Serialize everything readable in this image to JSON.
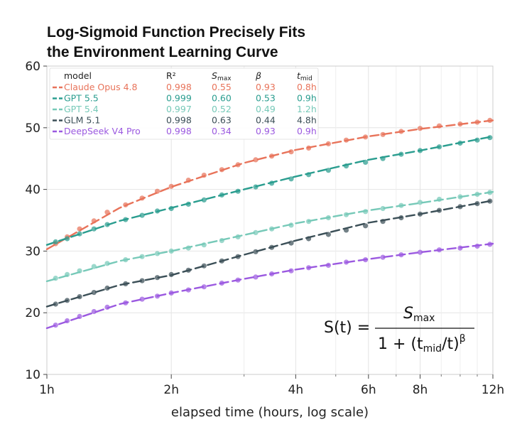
{
  "chart_data": {
    "type": "scatter",
    "title_lines": [
      "Log-Sigmoid Function Precisely Fits",
      "the Environment Learning Curve"
    ],
    "xlabel": "elapsed time (hours, log scale)",
    "ylabel": "",
    "x_scale": "log",
    "xlim_hours": [
      1,
      12
    ],
    "ylim": [
      10,
      60
    ],
    "x_ticks": [
      {
        "hours": 1,
        "label": "1h"
      },
      {
        "hours": 2,
        "label": "2h"
      },
      {
        "hours": 4,
        "label": "4h"
      },
      {
        "hours": 6,
        "label": "6h"
      },
      {
        "hours": 8,
        "label": "8h"
      },
      {
        "hours": 12,
        "label": "12h"
      }
    ],
    "y_ticks": [
      10,
      20,
      30,
      40,
      50,
      60
    ],
    "grid": true,
    "legend_position": "top-left",
    "legend_headers": [
      "model",
      "R²",
      "Smax",
      "β",
      "tmid"
    ],
    "series": [
      {
        "name": "Claude Opus 4.8",
        "r2": "0.998",
        "smax": "0.55",
        "beta": "0.93",
        "tmid": "0.8h",
        "color": "#e8735a",
        "points": [
          [
            1.05,
            31.2
          ],
          [
            1.12,
            32.3
          ],
          [
            1.2,
            33.6
          ],
          [
            1.3,
            34.9
          ],
          [
            1.4,
            36.3
          ],
          [
            1.55,
            37.5
          ],
          [
            1.7,
            38.6
          ],
          [
            1.85,
            39.7
          ],
          [
            2.0,
            40.5
          ],
          [
            2.2,
            41.5
          ],
          [
            2.4,
            42.3
          ],
          [
            2.65,
            43.2
          ],
          [
            2.9,
            44.0
          ],
          [
            3.2,
            44.8
          ],
          [
            3.5,
            45.4
          ],
          [
            3.9,
            46.1
          ],
          [
            4.3,
            46.7
          ],
          [
            4.8,
            47.4
          ],
          [
            5.3,
            48.0
          ],
          [
            5.9,
            48.5
          ],
          [
            6.5,
            48.9
          ],
          [
            7.2,
            49.4
          ],
          [
            8.0,
            49.9
          ],
          [
            8.9,
            50.3
          ],
          [
            10.0,
            50.6
          ],
          [
            11.0,
            50.9
          ],
          [
            11.8,
            51.2
          ]
        ]
      },
      {
        "name": "GPT 5.5",
        "r2": "0.999",
        "smax": "0.60",
        "beta": "0.53",
        "tmid": "0.9h",
        "color": "#2a9d8f",
        "points": [
          [
            1.05,
            31.5
          ],
          [
            1.12,
            32.0
          ],
          [
            1.2,
            32.8
          ],
          [
            1.3,
            33.6
          ],
          [
            1.4,
            34.3
          ],
          [
            1.55,
            35.1
          ],
          [
            1.7,
            35.8
          ],
          [
            1.85,
            36.5
          ],
          [
            2.0,
            36.9
          ],
          [
            2.2,
            37.6
          ],
          [
            2.4,
            38.3
          ],
          [
            2.65,
            39.1
          ],
          [
            2.9,
            39.7
          ],
          [
            3.2,
            40.4
          ],
          [
            3.5,
            41.0
          ],
          [
            3.9,
            41.7
          ],
          [
            4.3,
            42.4
          ],
          [
            4.8,
            43.1
          ],
          [
            5.3,
            43.8
          ],
          [
            5.9,
            44.4
          ],
          [
            6.5,
            45.0
          ],
          [
            7.2,
            45.7
          ],
          [
            8.0,
            46.3
          ],
          [
            8.9,
            46.9
          ],
          [
            10.0,
            47.5
          ],
          [
            11.0,
            48.0
          ],
          [
            11.8,
            48.4
          ]
        ]
      },
      {
        "name": "GPT 5.4",
        "r2": "0.997",
        "smax": "0.52",
        "beta": "0.49",
        "tmid": "1.2h",
        "color": "#76c9b8",
        "points": [
          [
            1.05,
            25.6
          ],
          [
            1.12,
            26.2
          ],
          [
            1.2,
            26.8
          ],
          [
            1.3,
            27.5
          ],
          [
            1.4,
            28.0
          ],
          [
            1.55,
            28.6
          ],
          [
            1.7,
            29.1
          ],
          [
            1.85,
            29.6
          ],
          [
            2.0,
            30.0
          ],
          [
            2.2,
            30.5
          ],
          [
            2.4,
            31.0
          ],
          [
            2.65,
            31.7
          ],
          [
            2.9,
            32.3
          ],
          [
            3.2,
            33.0
          ],
          [
            3.5,
            33.6
          ],
          [
            3.9,
            34.2
          ],
          [
            4.3,
            34.8
          ],
          [
            4.8,
            35.4
          ],
          [
            5.3,
            35.9
          ],
          [
            5.9,
            36.4
          ],
          [
            6.5,
            36.9
          ],
          [
            7.2,
            37.4
          ],
          [
            8.0,
            37.9
          ],
          [
            8.9,
            38.4
          ],
          [
            10.0,
            38.8
          ],
          [
            11.0,
            39.2
          ],
          [
            11.8,
            39.5
          ]
        ]
      },
      {
        "name": "GLM 5.1",
        "r2": "0.998",
        "smax": "0.63",
        "beta": "0.44",
        "tmid": "4.8h",
        "color": "#3b4f57",
        "points": [
          [
            1.05,
            21.4
          ],
          [
            1.12,
            22.0
          ],
          [
            1.2,
            22.6
          ],
          [
            1.3,
            23.3
          ],
          [
            1.4,
            24.0
          ],
          [
            1.55,
            24.7
          ],
          [
            1.7,
            25.2
          ],
          [
            1.85,
            25.7
          ],
          [
            2.0,
            26.2
          ],
          [
            2.2,
            26.9
          ],
          [
            2.4,
            27.6
          ],
          [
            2.65,
            28.4
          ],
          [
            2.9,
            29.1
          ],
          [
            3.2,
            29.9
          ],
          [
            3.5,
            30.6
          ],
          [
            3.9,
            31.3
          ],
          [
            4.3,
            32.0
          ],
          [
            4.8,
            32.7
          ],
          [
            5.3,
            33.4
          ],
          [
            5.9,
            34.1
          ],
          [
            6.5,
            34.8
          ],
          [
            7.2,
            35.4
          ],
          [
            8.0,
            36.0
          ],
          [
            8.9,
            36.6
          ],
          [
            10.0,
            37.2
          ],
          [
            11.0,
            37.7
          ],
          [
            11.8,
            38.1
          ]
        ]
      },
      {
        "name": "DeepSeek V4 Pro",
        "r2": "0.998",
        "smax": "0.34",
        "beta": "0.93",
        "tmid": "0.9h",
        "color": "#9b59e0",
        "points": [
          [
            1.05,
            18.0
          ],
          [
            1.12,
            18.7
          ],
          [
            1.2,
            19.4
          ],
          [
            1.3,
            20.2
          ],
          [
            1.4,
            20.9
          ],
          [
            1.55,
            21.6
          ],
          [
            1.7,
            22.2
          ],
          [
            1.85,
            22.7
          ],
          [
            2.0,
            23.2
          ],
          [
            2.2,
            23.7
          ],
          [
            2.4,
            24.2
          ],
          [
            2.65,
            24.8
          ],
          [
            2.9,
            25.3
          ],
          [
            3.2,
            25.8
          ],
          [
            3.5,
            26.3
          ],
          [
            3.9,
            26.8
          ],
          [
            4.3,
            27.3
          ],
          [
            4.8,
            27.7
          ],
          [
            5.3,
            28.2
          ],
          [
            5.9,
            28.6
          ],
          [
            6.5,
            29.0
          ],
          [
            7.2,
            29.4
          ],
          [
            8.0,
            29.8
          ],
          [
            8.9,
            30.2
          ],
          [
            10.0,
            30.5
          ],
          [
            11.0,
            30.8
          ],
          [
            11.8,
            31.1
          ]
        ]
      }
    ],
    "fit_lines": [
      {
        "name": "Claude Opus 4.8",
        "points": [
          [
            1,
            30.3
          ],
          [
            1.5,
            37.0
          ],
          [
            2,
            40.4
          ],
          [
            3,
            44.3
          ],
          [
            4,
            46.4
          ],
          [
            6,
            48.6
          ],
          [
            8,
            49.8
          ],
          [
            12,
            51.2
          ]
        ]
      },
      {
        "name": "GPT 5.5",
        "points": [
          [
            1,
            31.0
          ],
          [
            1.5,
            34.9
          ],
          [
            2,
            37.0
          ],
          [
            3,
            40.0
          ],
          [
            4,
            42.1
          ],
          [
            6,
            44.8
          ],
          [
            8,
            46.3
          ],
          [
            12,
            48.6
          ]
        ]
      },
      {
        "name": "GPT 5.4",
        "points": [
          [
            1,
            25.1
          ],
          [
            1.5,
            28.4
          ],
          [
            2,
            30.0
          ],
          [
            3,
            32.6
          ],
          [
            4,
            34.5
          ],
          [
            6,
            36.6
          ],
          [
            8,
            37.8
          ],
          [
            12,
            39.6
          ]
        ]
      },
      {
        "name": "GLM 5.1",
        "points": [
          [
            1,
            21.0
          ],
          [
            1.5,
            24.5
          ],
          [
            2,
            26.1
          ],
          [
            3,
            29.4
          ],
          [
            4,
            31.7
          ],
          [
            6,
            34.6
          ],
          [
            8,
            36.0
          ],
          [
            12,
            38.2
          ]
        ]
      },
      {
        "name": "DeepSeek V4 Pro",
        "points": [
          [
            1,
            17.5
          ],
          [
            1.5,
            21.4
          ],
          [
            2,
            23.2
          ],
          [
            3,
            25.5
          ],
          [
            4,
            27.0
          ],
          [
            6,
            28.7
          ],
          [
            8,
            29.8
          ],
          [
            12,
            31.2
          ]
        ]
      }
    ],
    "annotation": {
      "lhs": "S(t) =",
      "numerator": "S",
      "numerator_sub": "max",
      "den_prefix": "1 + (t",
      "den_sub": "mid",
      "den_mid": "/t)",
      "den_sup": "β"
    }
  }
}
